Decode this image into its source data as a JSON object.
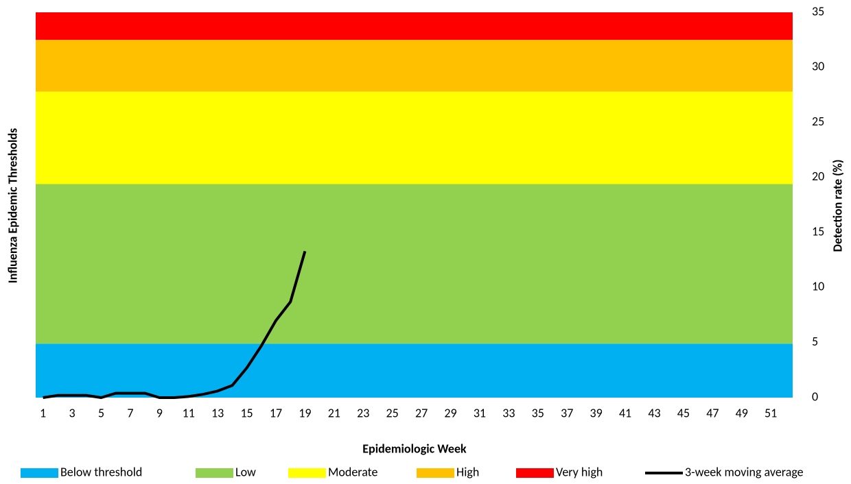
{
  "chart_data": {
    "type": "area",
    "x_label": "Epidemiologic Week",
    "y_label": "Influenza Epidemic Thresholds",
    "y2_label": "Detection rate (%)",
    "categories": [
      1,
      null,
      3,
      null,
      5,
      null,
      7,
      null,
      9,
      null,
      11,
      null,
      13,
      null,
      15,
      null,
      17,
      null,
      19,
      null,
      21,
      null,
      23,
      null,
      25,
      null,
      27,
      null,
      29,
      null,
      31,
      null,
      33,
      null,
      35,
      null,
      37,
      null,
      39,
      null,
      41,
      null,
      43,
      null,
      45,
      null,
      47,
      null,
      49,
      null,
      51,
      null
    ],
    "y2lim": [
      0,
      35
    ],
    "y2ticks": [
      0,
      5,
      10,
      15,
      20,
      25,
      30,
      35
    ],
    "series": [
      {
        "name": "Below threshold",
        "color": "#00b0f0",
        "value": 4.9,
        "axis": "y2"
      },
      {
        "name": "Low",
        "color": "#92d050",
        "value": 14.5,
        "axis": "y2"
      },
      {
        "name": "Moderate",
        "color": "#ffff00",
        "value": 8.4,
        "axis": "y2"
      },
      {
        "name": "High",
        "color": "#ffc000",
        "value": 4.7,
        "axis": "y2"
      },
      {
        "name": "Very high",
        "color": "#ff0000",
        "value": 2.5,
        "axis": "y2"
      },
      {
        "name": "3-week moving average",
        "color": "#000000",
        "type": "line",
        "axis": "y2",
        "values": [
          0,
          0.2,
          0.2,
          0.2,
          0,
          0.4,
          0.4,
          0.4,
          0,
          0,
          0.1,
          0.3,
          0.6,
          1.1,
          2.7,
          4.7,
          7.0,
          8.7,
          13.3,
          null,
          null,
          null,
          null,
          null,
          null,
          null,
          null,
          null,
          null,
          null,
          null,
          null,
          null,
          null,
          null,
          null,
          null,
          null,
          null,
          null,
          null,
          null,
          null,
          null,
          null,
          null,
          null,
          null,
          null,
          null,
          null,
          null
        ]
      }
    ]
  }
}
